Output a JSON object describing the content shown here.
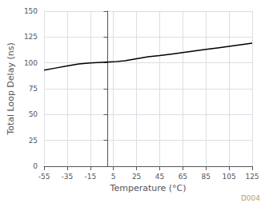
{
  "chart_data": {
    "type": "line",
    "x": [
      -55,
      -45,
      -35,
      -25,
      -15,
      -5,
      5,
      15,
      25,
      35,
      45,
      55,
      65,
      75,
      85,
      95,
      105,
      115,
      125
    ],
    "values": [
      93,
      95,
      97,
      99,
      100,
      100.5,
      101,
      102,
      104,
      106,
      107,
      108.5,
      110,
      111.5,
      113,
      114.5,
      116,
      117.5,
      119
    ],
    "color": "#000000",
    "xlabel": "Temperature (°C)",
    "ylabel": "Total Loop Delay (ns)",
    "xlim": [
      -55,
      125
    ],
    "ylim": [
      0,
      150
    ],
    "xticks": [
      -55,
      -35,
      -15,
      5,
      25,
      45,
      65,
      85,
      105,
      125
    ],
    "yticks": [
      0,
      25,
      50,
      75,
      100,
      125,
      150
    ],
    "grid": true,
    "annotations": [
      {
        "text": "D004",
        "color": "#b8a060"
      }
    ]
  }
}
